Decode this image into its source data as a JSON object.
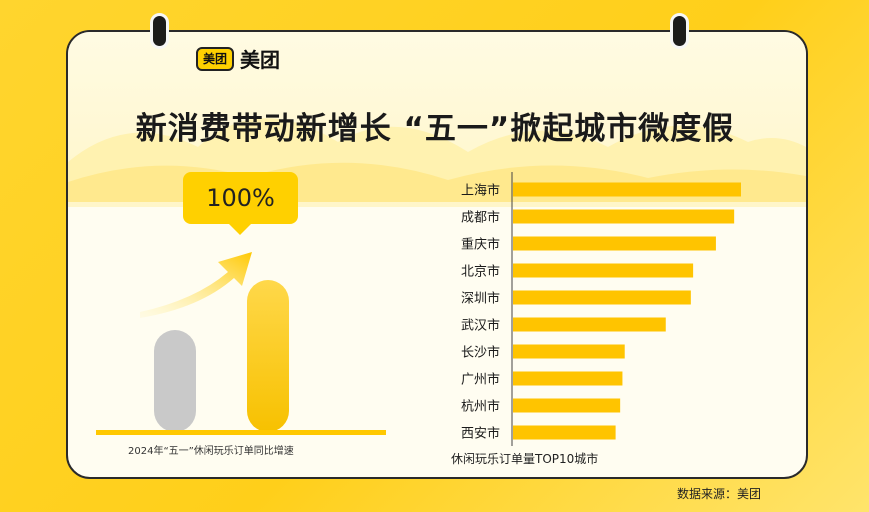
{
  "brand": {
    "logo_mark": "美团",
    "logo_text": "美团"
  },
  "title": "新消费带动新增长 “五一”掀起城市微度假",
  "growth": {
    "callout": "100%",
    "value_percent": 100,
    "caption": "2024年“五一”休闲玩乐订单同比增速"
  },
  "chart_data": {
    "type": "bar",
    "orientation": "horizontal",
    "title": "",
    "xlabel": "休闲玩乐订单量TOP10城市",
    "ylabel": "",
    "categories": [
      "上海市",
      "成都市",
      "重庆市",
      "北京市",
      "深圳市",
      "武汉市",
      "长沙市",
      "广州市",
      "杭州市",
      "西安市"
    ],
    "values": [
      100,
      97,
      89,
      79,
      78,
      67,
      49,
      48,
      47,
      45
    ],
    "grid": false,
    "legend": "none"
  },
  "source": "数据来源：美团",
  "colors": {
    "accent": "#ffd000",
    "bar": "#ffc400",
    "gray_bar": "#c9c9c9",
    "background": "#ffd52e"
  },
  "icons": [
    "ring-binder-icon",
    "arrow-up-right-icon",
    "mountain-decoration"
  ]
}
